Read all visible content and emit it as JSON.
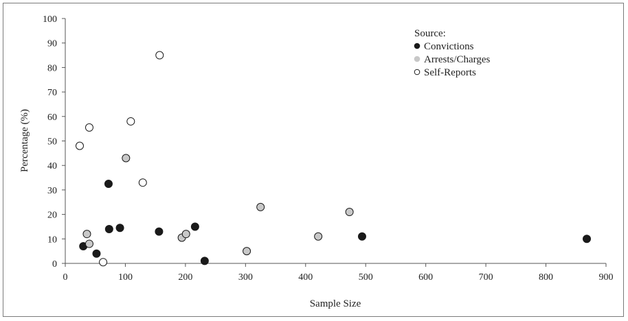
{
  "chart_data": {
    "type": "scatter",
    "title": "",
    "xlabel": "Sample Size",
    "ylabel": "Percentage (%)",
    "xlim": [
      0,
      900
    ],
    "ylim": [
      0,
      100
    ],
    "x_ticks": [
      0,
      100,
      200,
      300,
      400,
      500,
      600,
      700,
      800,
      900
    ],
    "y_ticks": [
      0,
      10,
      20,
      30,
      40,
      50,
      60,
      70,
      80,
      90,
      100
    ],
    "grid": false,
    "legend": {
      "title": "Source:",
      "placement": "top-right"
    },
    "series": [
      {
        "name": "Convictions",
        "color": "#1a1a1a",
        "points": [
          {
            "x": 30,
            "y": 7
          },
          {
            "x": 52,
            "y": 4
          },
          {
            "x": 72,
            "y": 32.5
          },
          {
            "x": 73,
            "y": 14
          },
          {
            "x": 91,
            "y": 14.5
          },
          {
            "x": 156,
            "y": 13
          },
          {
            "x": 216,
            "y": 15
          },
          {
            "x": 232,
            "y": 1
          },
          {
            "x": 494,
            "y": 11
          },
          {
            "x": 868,
            "y": 10
          }
        ]
      },
      {
        "name": "Arrests/Charges",
        "color": "#c8c8c8",
        "points": [
          {
            "x": 36,
            "y": 12
          },
          {
            "x": 40,
            "y": 8
          },
          {
            "x": 101,
            "y": 43
          },
          {
            "x": 194,
            "y": 10.5
          },
          {
            "x": 201,
            "y": 12
          },
          {
            "x": 302,
            "y": 5
          },
          {
            "x": 325,
            "y": 23
          },
          {
            "x": 421,
            "y": 11
          },
          {
            "x": 473,
            "y": 21
          }
        ]
      },
      {
        "name": "Self-Reports",
        "color": "#ffffff",
        "points": [
          {
            "x": 24,
            "y": 48
          },
          {
            "x": 40,
            "y": 55.5
          },
          {
            "x": 63,
            "y": 0.5
          },
          {
            "x": 109,
            "y": 58
          },
          {
            "x": 129,
            "y": 33
          },
          {
            "x": 157,
            "y": 85
          }
        ]
      }
    ]
  }
}
